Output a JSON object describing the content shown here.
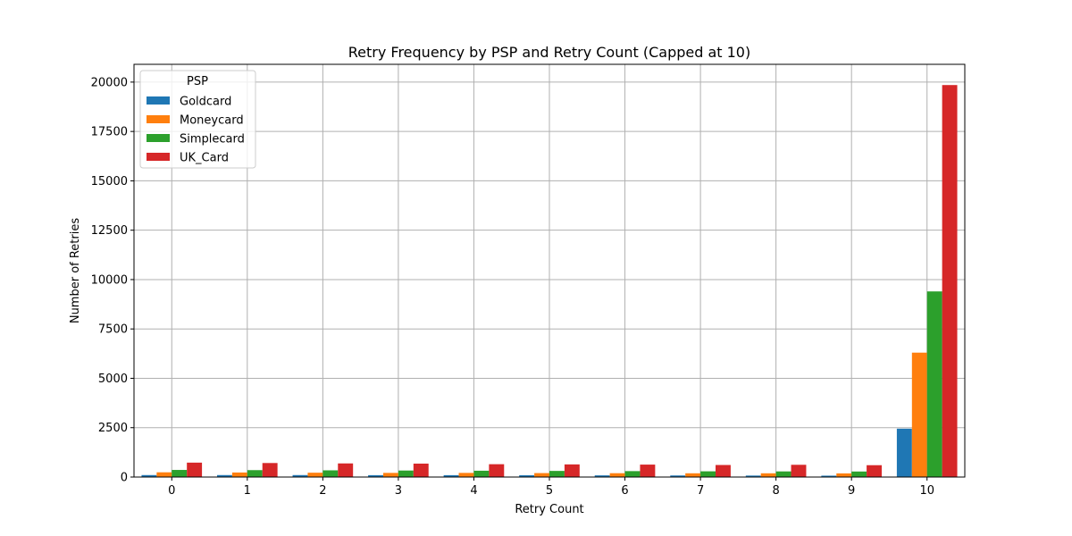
{
  "chart_data": {
    "type": "bar",
    "title": "Retry Frequency by PSP and Retry Count (Capped at 10)",
    "xlabel": "Retry Count",
    "ylabel": "Number of Retries",
    "categories": [
      "0",
      "1",
      "2",
      "3",
      "4",
      "5",
      "6",
      "7",
      "8",
      "9",
      "10"
    ],
    "ylim": [
      0,
      20900
    ],
    "yticks": [
      0,
      2500,
      5000,
      7500,
      10000,
      12500,
      15000,
      17500,
      20000
    ],
    "grid": true,
    "legend": {
      "title": "PSP",
      "position": "top-left"
    },
    "series": [
      {
        "name": "Goldcard",
        "color": "#1f77b4",
        "values": [
          100,
          100,
          100,
          95,
          95,
          90,
          85,
          80,
          75,
          70,
          2450
        ]
      },
      {
        "name": "Moneycard",
        "color": "#ff7f0e",
        "values": [
          240,
          230,
          220,
          210,
          210,
          200,
          195,
          190,
          190,
          185,
          6300
        ]
      },
      {
        "name": "Simplecard",
        "color": "#2ca02c",
        "values": [
          360,
          350,
          340,
          330,
          320,
          310,
          300,
          290,
          285,
          280,
          9400
        ]
      },
      {
        "name": "UK_Card",
        "color": "#d62728",
        "values": [
          730,
          710,
          690,
          680,
          650,
          640,
          630,
          610,
          620,
          600,
          19850
        ]
      }
    ]
  }
}
